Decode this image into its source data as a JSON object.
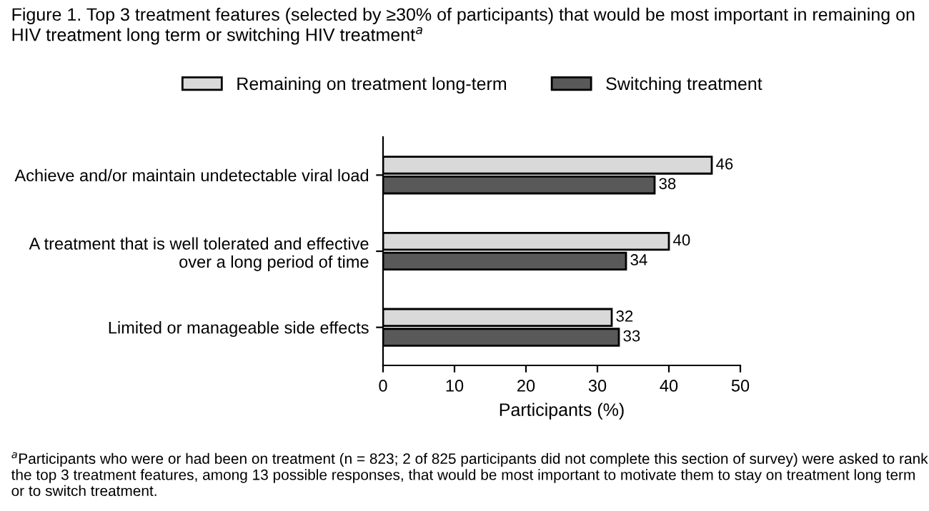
{
  "chart_data": {
    "type": "bar",
    "orientation": "horizontal",
    "title": "Figure 1. Top 3 treatment features (selected by ≥30% of participants) that would be most important in remaining on HIV treatment long term or switching HIV treatment$^{a}$",
    "categories": [
      "Achieve and/or maintain undetectable viral load",
      "A treatment that is well tolerated and effective\nover a long period of time",
      "Limited or manageable side effects"
    ],
    "series": [
      {
        "name": "Remaining on treatment long-term",
        "color": "#d9d9d9",
        "values": [
          46,
          40,
          32
        ]
      },
      {
        "name": "Switching treatment",
        "color": "#595959",
        "values": [
          38,
          34,
          33
        ]
      }
    ],
    "xlim": [
      0,
      50
    ],
    "xticks": [
      0,
      10,
      20,
      30,
      40,
      50
    ],
    "xlabel": "Participants (%)",
    "data_labels": true,
    "legend": "top",
    "grid": false,
    "annotations": [
      "$^{a}$Participants who were or had been on treatment (n = 823; 2 of 825 participants did not complete this section of survey) were asked to rank the top 3 treatment features, among 13 possible responses, that would be most important to motivate them to stay on treatment long term or to switch treatment."
    ]
  }
}
